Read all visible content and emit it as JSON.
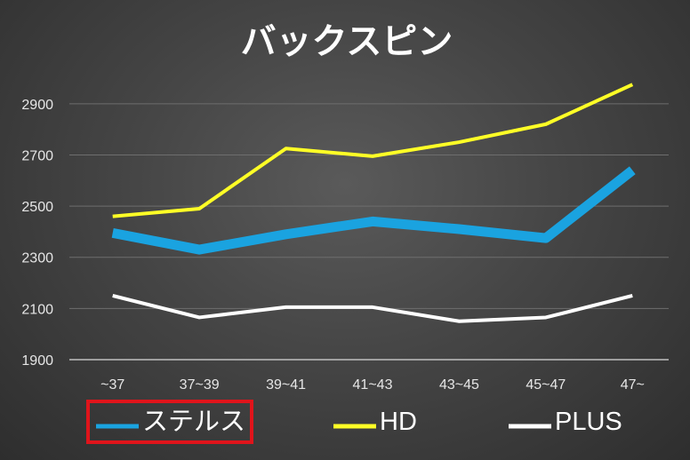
{
  "chart_data": {
    "type": "line",
    "title": "バックスピン",
    "categories": [
      "~37",
      "37~39",
      "39~41",
      "41~43",
      "43~45",
      "45~47",
      "47~"
    ],
    "ylim": [
      1900,
      3000
    ],
    "yticks": [
      1900,
      2100,
      2300,
      2500,
      2700,
      2900
    ],
    "grid": true,
    "legend_position": "bottom",
    "series": [
      {
        "name": "ステルス",
        "color": "#1aa3e0",
        "values": [
          2395,
          2330,
          2390,
          2440,
          2410,
          2375,
          2640
        ],
        "highlighted": true
      },
      {
        "name": "HD",
        "color": "#ffff26",
        "values": [
          2460,
          2490,
          2725,
          2695,
          2750,
          2820,
          2975
        ]
      },
      {
        "name": "PLUS",
        "color": "#ffffff",
        "values": [
          2150,
          2065,
          2105,
          2105,
          2050,
          2065,
          2150
        ]
      }
    ],
    "highlight_color": "#e0141b"
  }
}
